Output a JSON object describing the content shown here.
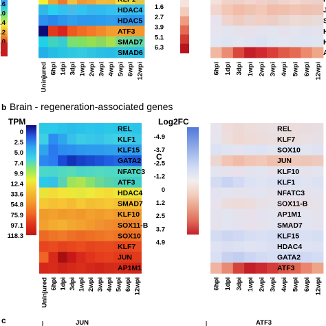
{
  "panel_b": {
    "letter": "b",
    "heading": "Brain - regeneration-associated genes"
  },
  "panel_c_letter": "c",
  "panel_c2_letter": "C",
  "bottom": {
    "left_label": "JUN",
    "right_label": "ATF3"
  },
  "chart_data": [
    {
      "id": "top_left",
      "type": "heatmap",
      "title": "",
      "colorbar_ticks": [
        "13.6",
        "28.0",
        "41.4",
        "54.2",
        "67.0",
        "79.8"
      ],
      "colorbar_colors": [
        "#4c8cf0",
        "#2cc8e8",
        "#7ee870",
        "#f6e43a",
        "#f39a2c",
        "#d8321e",
        "#a80f12"
      ],
      "x": [
        "Uninjured",
        "6hpi",
        "1dpi",
        "3dpi",
        "1wpi",
        "2wpi",
        "3wpi",
        "4wpi",
        "5wpi",
        "6wpi",
        "12wpi"
      ],
      "rows_visible": [
        "KLF1",
        "HDAC4",
        "HDAC5",
        "ATF3",
        "SMAD7",
        "SMAD6"
      ],
      "cells": [
        [
          "#f6f030",
          "#f0a532",
          "#ee7a30",
          "#f2c040",
          "#f09838",
          "#f2a23a",
          "#f4ba3c",
          "#f2b83a",
          "#f6e03a",
          "#e8d840",
          "#e0c840"
        ],
        [
          "#30b8e8",
          "#28d0f0",
          "#32c2f0",
          "#46bce8",
          "#30c4f0",
          "#34b8ee",
          "#30bcf0",
          "#34c0f0",
          "#38c2ee",
          "#36bcec",
          "#34c0f0"
        ],
        [
          "#3090f0",
          "#2888ee",
          "#2a96ec",
          "#30a0ec",
          "#2e98ee",
          "#2a9aec",
          "#2c9cee",
          "#30a0ec",
          "#2e9aec",
          "#2c96ee",
          "#3098ee"
        ],
        [
          "#0c0c78",
          "#e23a1e",
          "#d8261c",
          "#ee5a20",
          "#f06e24",
          "#f27a28",
          "#f28a2c",
          "#f49c30",
          "#f4a02e",
          "#f29a2c",
          "#f2982c"
        ],
        [
          "#20d2e8",
          "#40d4c0",
          "#38ccd0",
          "#7ae070",
          "#80e060",
          "#94e04e",
          "#8cd860",
          "#a8e04c",
          "#78d890",
          "#66d8a0",
          "#60d4a8"
        ],
        [
          "#22b0e8",
          "#26bce6",
          "#28c4e4",
          "#30c8e0",
          "#34cae0",
          "#30c4e2",
          "#2cbfe4",
          "#28bce6",
          "#30c2e2",
          "#2ec0e4",
          "#2cbee4"
        ]
      ]
    },
    {
      "id": "top_right",
      "type": "heatmap",
      "title": "",
      "colorbar_ticks": [
        "1.6",
        "2.7",
        "3.9",
        "5.1",
        "6.3"
      ],
      "x": [
        "6hpi",
        "1dpi",
        "3dpi",
        "1wpi",
        "2wpi",
        "3wpi",
        "4wpi",
        "5wpi",
        "6wpi",
        "12wpi"
      ],
      "rows_visible": [
        "REL",
        "JUN",
        "SOX11-B",
        "HDAC4",
        "HDAC5",
        "ATF3"
      ],
      "cells": [
        [
          "#f4e0dc",
          "#f0d2c8",
          "#eed0c8",
          "#f2d6ce",
          "#f0d0c8",
          "#eccec8",
          "#f0d4cc",
          "#f2d8d0",
          "#eed2ca",
          "#ecd0ca"
        ],
        [
          "#f0d6ce",
          "#f4c6b4",
          "#f2bca8",
          "#f0c2b0",
          "#f4c8b8",
          "#f2bcaa",
          "#f0c0ae",
          "#f2c4b4",
          "#f0c0b0",
          "#eec4b6"
        ],
        [
          "#e8e2ee",
          "#eed4cc",
          "#f0ccc0",
          "#ecd2cc",
          "#f0d0c4",
          "#eccec6",
          "#ead6d0",
          "#eedad4",
          "#ecd8d2",
          "#e8dcd8"
        ],
        [
          "#e6e4ee",
          "#e2e4f0",
          "#e6e2ec",
          "#e8e0ea",
          "#e4e2ee",
          "#e2e4f0",
          "#e6e2ec",
          "#e4e4ee",
          "#e2e2ee",
          "#e4e2ec"
        ],
        [
          "#e2e6f2",
          "#dee4f2",
          "#e2e6f0",
          "#e0e4f0",
          "#dce2f2",
          "#e0e6f0",
          "#e2e6f0",
          "#e0e4f0",
          "#dee4f2",
          "#e0e6f0"
        ],
        [
          "#f0b8a0",
          "#ea8c74",
          "#d8463c",
          "#c41e28",
          "#d02a30",
          "#da3e38",
          "#e05a48",
          "#e46a52",
          "#ec8a70",
          "#f0a688"
        ]
      ]
    },
    {
      "id": "brain_tpm",
      "type": "heatmap",
      "title": "",
      "colorbar_label": "TPM",
      "colorbar_ticks": [
        "0",
        "2.5",
        "5.0",
        "7.4",
        "9.9",
        "12.4",
        "33.6",
        "54.8",
        "75.9",
        "97.1",
        "118.3"
      ],
      "colorbar_colors": [
        "#0a0a80",
        "#2a58e0",
        "#2ca8ee",
        "#3cd2e8",
        "#8ee866",
        "#eeee36",
        "#f4c032",
        "#f29a2c",
        "#f06a24",
        "#e0341c",
        "#c01414"
      ],
      "x": [
        "Uninjured",
        "6hpi",
        "1dpi",
        "3dpi",
        "1wpi",
        "2wpi",
        "3wpi",
        "4wpi",
        "5wpi",
        "6wpi",
        "12wpi"
      ],
      "rows": [
        "REL",
        "KLF1",
        "KLF15",
        "GATA2",
        "NFATC3",
        "ATF3",
        "HDAC4",
        "SMAD7",
        "KLF10",
        "SOX11-B",
        "SOX10",
        "KLF7",
        "JUN",
        "AP1M1"
      ],
      "cells": [
        [
          "#2cc8e8",
          "#2ccaea",
          "#2ac4ea",
          "#28bee8",
          "#2ac2ea",
          "#2cc6ea",
          "#2ac4ea",
          "#2cc8e8",
          "#2ac6ea",
          "#2ccae8",
          "#2ac4ea"
        ],
        [
          "#3cd0e4",
          "#2c8ef0",
          "#2ea6ee",
          "#36c0ea",
          "#3ccce6",
          "#3ac8e8",
          "#38c4e8",
          "#3ccce6",
          "#40d0e4",
          "#3ccce6",
          "#3ac8e8"
        ],
        [
          "#2ea4ee",
          "#2c78f0",
          "#2c8cf0",
          "#2e90ee",
          "#2e98ee",
          "#2e9cee",
          "#2e9cee",
          "#30a0ec",
          "#30a2ec",
          "#2e9eee",
          "#30a0ec"
        ],
        [
          "#2c88f0",
          "#2a7cf0",
          "#1a4ad8",
          "#1232b8",
          "#1840c8",
          "#1a4ad0",
          "#1c54d8",
          "#2060e0",
          "#2268e4",
          "#2060e0",
          "#1e5adc"
        ],
        [
          "#4cd8c8",
          "#4ad6cc",
          "#52dac0",
          "#58dcb8",
          "#4cd6c8",
          "#50d8c4",
          "#54dac0",
          "#50d8c4",
          "#4ed8c6",
          "#52dac2",
          "#50d8c4"
        ],
        [
          "#2ccaea",
          "#34c2e8",
          "#5ad2b4",
          "#9ee45a",
          "#aee454",
          "#88e070",
          "#6cd894",
          "#58d4a8",
          "#4cd2b8",
          "#46d0c0",
          "#40cec6"
        ],
        [
          "#e8e438",
          "#f4dc38",
          "#f4e438",
          "#ece838",
          "#e4e83c",
          "#ecea3a",
          "#f2e238",
          "#f4dc38",
          "#eee63a",
          "#e8e83c",
          "#ece63a"
        ],
        [
          "#f6c834",
          "#f4c034",
          "#f6c434",
          "#f4bc32",
          "#f6c834",
          "#f2be32",
          "#f4c234",
          "#f6c834",
          "#f4c234",
          "#f2bc32",
          "#f4c034"
        ],
        [
          "#f09c2c",
          "#f2a02e",
          "#f09a2c",
          "#f29e2e",
          "#f0982c",
          "#f2a02e",
          "#f09c2c",
          "#f2a22e",
          "#f09c2c",
          "#f29e2e",
          "#f0982c"
        ],
        [
          "#f4a030",
          "#f4ac30",
          "#f4b032",
          "#f2a830",
          "#f2a230",
          "#f29a2e",
          "#f09230",
          "#f08c2e",
          "#f0882c",
          "#ee802c",
          "#ee842c"
        ],
        [
          "#ec6a24",
          "#ee7426",
          "#f07a28",
          "#ee7026",
          "#ec6a24",
          "#ee7026",
          "#ee7426",
          "#f07a28",
          "#ee7426",
          "#ec6c24",
          "#ee7026"
        ],
        [
          "#e8441e",
          "#ea4a20",
          "#e4421e",
          "#e8461e",
          "#ea4c20",
          "#e6441e",
          "#e8481e",
          "#ea4a20",
          "#e6461e",
          "#e8481e",
          "#ea4a20"
        ],
        [
          "#f06426",
          "#d82a1a",
          "#a81010",
          "#c81818",
          "#d82a1a",
          "#e0341c",
          "#e43c1c",
          "#e6401e",
          "#e43a1c",
          "#e2381c",
          "#e03a1c"
        ],
        [
          "#d4281a",
          "#d82c1a",
          "#d0241a",
          "#d42a1a",
          "#d82e1a",
          "#d4281a",
          "#d02419",
          "#d42a1a",
          "#d82c1a",
          "#d4281a",
          "#d02619"
        ]
      ]
    },
    {
      "id": "brain_log2fc",
      "type": "heatmap",
      "title": "",
      "colorbar_label": "Log2FC",
      "colorbar_ticks": [
        "-4.9",
        "-3.7",
        "-2.5",
        "-1.2",
        "0",
        "1.2",
        "2.5",
        "3.7",
        "4.9"
      ],
      "colorbar_colors": [
        "#5078d8",
        "#7c9ae2",
        "#a6bcec",
        "#d0dcf4",
        "#f2eeee",
        "#f2cfc0",
        "#eaa088",
        "#e06a58",
        "#c41e28"
      ],
      "x": [
        "6hpi",
        "1dpi",
        "3dpi",
        "1wpi",
        "2wpi",
        "3wpi",
        "4wpi",
        "5wpi",
        "6wpi",
        "12wpi"
      ],
      "rows": [
        "REL",
        "KLF7",
        "SOX10",
        "JUN",
        "KLF10",
        "KLF1",
        "NFATC3",
        "SOX11-B",
        "AP1M1",
        "SMAD7",
        "KLF15",
        "HDAC4",
        "GATA2",
        "ATF3"
      ],
      "cells": [
        [
          "#e8e4ee",
          "#eedcdc",
          "#eed8d6",
          "#ecdcdc",
          "#eadede",
          "#e8e0e4",
          "#eadede",
          "#ecdcdc",
          "#eadcde",
          "#e8dee2"
        ],
        [
          "#e6e4ee",
          "#ecdedc",
          "#f0d8d2",
          "#eedad6",
          "#ecdcda",
          "#eadede",
          "#ece0dc",
          "#eadede",
          "#e8e0e2",
          "#e6e0e6"
        ],
        [
          "#dce2f4",
          "#e0e4f2",
          "#e4e4f0",
          "#e0e4f2",
          "#dee2f2",
          "#e2e4f0",
          "#e0e4f2",
          "#dee2f2",
          "#e2e4f0",
          "#e0e2f2"
        ],
        [
          "#ecd6d0",
          "#f2c4b4",
          "#f0bca8",
          "#f2c4b4",
          "#f2c8b8",
          "#f0c0ae",
          "#f2c4b2",
          "#f0c8ba",
          "#eec6b8",
          "#eecabe"
        ],
        [
          "#e2e4f0",
          "#e6e2ec",
          "#e8e0ea",
          "#e4e2ee",
          "#e2e4f0",
          "#e6e2ec",
          "#e4e2ee",
          "#e2e4f0",
          "#e6e2ec",
          "#e4e4ee"
        ],
        [
          "#d4dcf4",
          "#c8d4f2",
          "#d2daf4",
          "#dce2f4",
          "#e0e4f2",
          "#dce2f4",
          "#d8def4",
          "#dce2f4",
          "#e0e4f2",
          "#dce2f4"
        ],
        [
          "#e4e2ee",
          "#e2e4f0",
          "#e6e2ec",
          "#e4e2ee",
          "#e2e4f0",
          "#e6e2ec",
          "#e4e2ee",
          "#e2e4f0",
          "#e6e2ec",
          "#e4e2ee"
        ],
        [
          "#e8e2ec",
          "#ecdcdc",
          "#eedad8",
          "#ecdcdc",
          "#e8e0e4",
          "#e6e2ea",
          "#e8e0e6",
          "#eadee0",
          "#e8e0e4",
          "#e6e2ea"
        ],
        [
          "#e4e2ee",
          "#e2e4f0",
          "#e6e2ec",
          "#e8e0ea",
          "#e4e2ee",
          "#e2e4f0",
          "#e6e2ec",
          "#e4e2ee",
          "#e2e4f0",
          "#e6e2ec"
        ],
        [
          "#e6e2ec",
          "#e2e4f0",
          "#e4e2ee",
          "#e8e0ea",
          "#e6e2ec",
          "#e2e4f0",
          "#e4e2ee",
          "#e6e2ec",
          "#e2e4f0",
          "#e4e2ee"
        ],
        [
          "#d4dcf4",
          "#ccd6f2",
          "#d0d8f4",
          "#d6def4",
          "#dae0f4",
          "#d6def4",
          "#d4dcf4",
          "#d8def4",
          "#dae0f4",
          "#d6def4"
        ],
        [
          "#dee2f2",
          "#dae0f2",
          "#dce2f2",
          "#e0e4f2",
          "#dee2f2",
          "#dae0f2",
          "#dce2f2",
          "#e0e4f2",
          "#dee2f2",
          "#dce2f2"
        ],
        [
          "#dae0f4",
          "#c8d2f0",
          "#c2cef0",
          "#ccd6f2",
          "#d2daf4",
          "#d6def4",
          "#d2daf4",
          "#ccd6f2",
          "#d0d8f4",
          "#d4dcf4"
        ],
        [
          "#f0b4a0",
          "#e88a74",
          "#d4443c",
          "#c41e28",
          "#cc2a30",
          "#d63c38",
          "#de5646",
          "#e26650",
          "#ea8670",
          "#eea488"
        ]
      ]
    }
  ]
}
